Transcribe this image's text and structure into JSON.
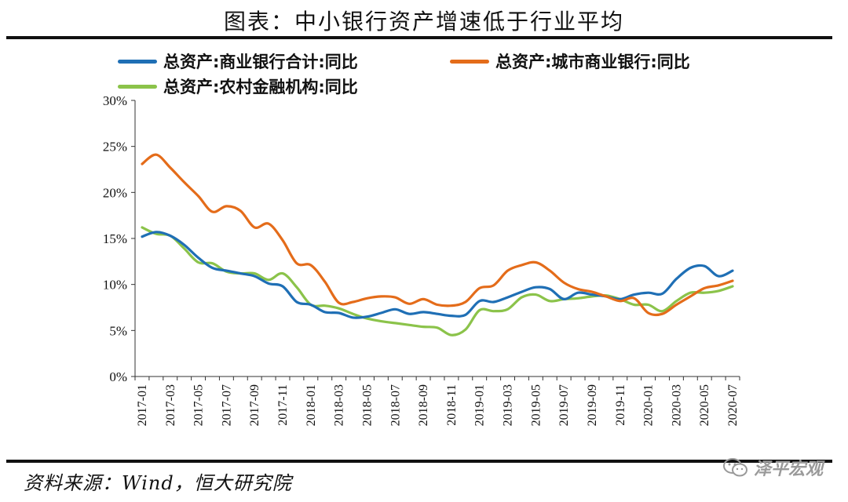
{
  "title": "图表：中小银行资产增速低于行业平均",
  "source": "资料来源：Wind，恒大研究院",
  "watermark": "泽平宏观",
  "watermark_icon": "wechat-icon",
  "chart_data": {
    "type": "line",
    "xlabel": "",
    "ylabel": "",
    "ylim": [
      0,
      30
    ],
    "yticks": [
      "0%",
      "5%",
      "10%",
      "15%",
      "20%",
      "25%",
      "30%"
    ],
    "grid": false,
    "legend_position": "top",
    "x": [
      "2017-01",
      "2017-02",
      "2017-03",
      "2017-04",
      "2017-05",
      "2017-06",
      "2017-07",
      "2017-08",
      "2017-09",
      "2017-10",
      "2017-11",
      "2017-12",
      "2018-01",
      "2018-02",
      "2018-03",
      "2018-04",
      "2018-05",
      "2018-06",
      "2018-07",
      "2018-08",
      "2018-09",
      "2018-10",
      "2018-11",
      "2018-12",
      "2019-01",
      "2019-02",
      "2019-03",
      "2019-04",
      "2019-05",
      "2019-06",
      "2019-07",
      "2019-08",
      "2019-09",
      "2019-10",
      "2019-11",
      "2019-12",
      "2020-01",
      "2020-02",
      "2020-03",
      "2020-04",
      "2020-05",
      "2020-06",
      "2020-07"
    ],
    "xtick_labels": [
      "2017-01",
      "2017-03",
      "2017-05",
      "2017-07",
      "2017-09",
      "2017-11",
      "2018-01",
      "2018-03",
      "2018-05",
      "2018-07",
      "2018-09",
      "2018-11",
      "2019-01",
      "2019-03",
      "2019-05",
      "2019-07",
      "2019-09",
      "2019-11",
      "2020-01",
      "2020-03",
      "2020-05",
      "2020-07"
    ],
    "series": [
      {
        "name": "总资产:商业银行合计:同比",
        "color": "#1f6fb5",
        "values": [
          15.2,
          15.7,
          15.3,
          14.3,
          12.9,
          11.8,
          11.5,
          11.2,
          10.9,
          10.1,
          9.8,
          8.1,
          7.8,
          7.0,
          6.9,
          6.4,
          6.5,
          6.9,
          7.3,
          6.8,
          7.0,
          6.8,
          6.6,
          6.7,
          8.2,
          8.1,
          8.6,
          9.2,
          9.7,
          9.5,
          8.4,
          9.1,
          8.9,
          8.7,
          8.4,
          8.9,
          9.1,
          9.0,
          10.6,
          11.8,
          12.0,
          10.9,
          11.5
        ]
      },
      {
        "name": "总资产:城市商业银行:同比",
        "color": "#e46c1a",
        "values": [
          23.1,
          24.1,
          22.7,
          21.1,
          19.6,
          17.9,
          18.5,
          18.0,
          16.2,
          16.6,
          14.8,
          12.3,
          12.1,
          10.3,
          8.0,
          8.1,
          8.5,
          8.7,
          8.6,
          7.9,
          8.4,
          7.8,
          7.7,
          8.1,
          9.6,
          9.9,
          11.5,
          12.1,
          12.4,
          11.5,
          10.2,
          9.5,
          9.2,
          8.7,
          8.2,
          8.5,
          6.9,
          6.8,
          7.8,
          8.7,
          9.6,
          9.9,
          10.4
        ]
      },
      {
        "name": "总资产:农村金融机构:同比",
        "color": "#8bc34a",
        "values": [
          16.2,
          15.5,
          15.3,
          13.9,
          12.4,
          12.3,
          11.4,
          11.2,
          11.2,
          10.5,
          11.2,
          9.7,
          7.8,
          7.7,
          7.4,
          6.8,
          6.3,
          6.0,
          5.8,
          5.6,
          5.4,
          5.3,
          4.5,
          5.1,
          7.2,
          7.1,
          7.3,
          8.6,
          8.9,
          8.2,
          8.4,
          8.5,
          8.7,
          8.8,
          8.4,
          7.8,
          7.8,
          7.1,
          8.2,
          9.1,
          9.1,
          9.3,
          9.8
        ]
      }
    ]
  }
}
